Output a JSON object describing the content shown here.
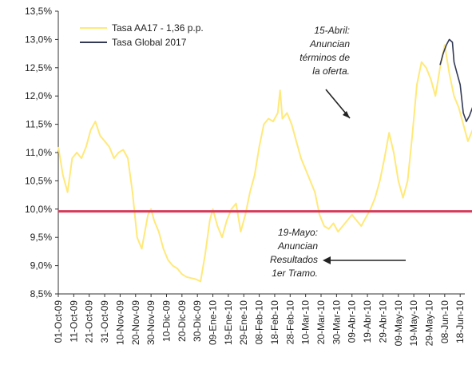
{
  "chart_data": {
    "type": "line",
    "title": "",
    "xlabel": "",
    "ylabel": "",
    "ylim": [
      8.5,
      13.5
    ],
    "y_ticks": [
      "13,5%",
      "13,0%",
      "12,5%",
      "12,0%",
      "11,5%",
      "11,0%",
      "10,5%",
      "10,0%",
      "9,5%",
      "9,0%",
      "8,5%"
    ],
    "y_tick_values": [
      13.5,
      13.0,
      12.5,
      12.0,
      11.5,
      11.0,
      10.5,
      10.0,
      9.5,
      9.0,
      8.5
    ],
    "x_ticks": [
      "01-Oct-09",
      "11-Oct-09",
      "21-Oct-09",
      "31-Oct-09",
      "10-Nov-09",
      "20-Nov-09",
      "30-Nov-09",
      "10-Dic-09",
      "20-Dic-09",
      "30-Dic-09",
      "09-Ene-10",
      "19-Ene-10",
      "29-Ene-10",
      "08-Feb-10",
      "18-Feb-10",
      "28-Feb-10",
      "10-Mar-10",
      "20-Mar-10",
      "30-Mar-10",
      "09-Abr-10",
      "19-Abr-10",
      "29-Abr-10",
      "09-May-10",
      "19-May-10",
      "29-May-10",
      "08-Jun-10",
      "18-Jun-10"
    ],
    "legend_placement": "top-left",
    "grid": false,
    "series": [
      {
        "name": "Tasa AA17 - 1,36 p.p.",
        "color": "#ffe97a",
        "points": [
          [
            0,
            11.1
          ],
          [
            0.3,
            10.6
          ],
          [
            0.6,
            10.3
          ],
          [
            0.9,
            10.9
          ],
          [
            1.2,
            11.0
          ],
          [
            1.5,
            10.9
          ],
          [
            1.8,
            11.1
          ],
          [
            2.1,
            11.4
          ],
          [
            2.4,
            11.55
          ],
          [
            2.7,
            11.3
          ],
          [
            3.0,
            11.2
          ],
          [
            3.3,
            11.1
          ],
          [
            3.6,
            10.9
          ],
          [
            3.9,
            11.0
          ],
          [
            4.2,
            11.05
          ],
          [
            4.5,
            10.9
          ],
          [
            4.8,
            10.3
          ],
          [
            5.1,
            9.5
          ],
          [
            5.4,
            9.3
          ],
          [
            5.6,
            9.6
          ],
          [
            5.8,
            9.9
          ],
          [
            6.0,
            10.0
          ],
          [
            6.2,
            9.8
          ],
          [
            6.5,
            9.6
          ],
          [
            6.8,
            9.3
          ],
          [
            7.1,
            9.1
          ],
          [
            7.4,
            9.0
          ],
          [
            7.7,
            8.95
          ],
          [
            8.0,
            8.85
          ],
          [
            8.3,
            8.8
          ],
          [
            8.6,
            8.78
          ],
          [
            8.9,
            8.76
          ],
          [
            9.2,
            8.72
          ],
          [
            9.5,
            9.2
          ],
          [
            9.8,
            9.8
          ],
          [
            10.0,
            10.0
          ],
          [
            10.3,
            9.7
          ],
          [
            10.6,
            9.5
          ],
          [
            10.9,
            9.8
          ],
          [
            11.2,
            10.0
          ],
          [
            11.5,
            10.1
          ],
          [
            11.8,
            9.6
          ],
          [
            12.1,
            9.9
          ],
          [
            12.4,
            10.3
          ],
          [
            12.7,
            10.6
          ],
          [
            13.0,
            11.1
          ],
          [
            13.3,
            11.5
          ],
          [
            13.6,
            11.6
          ],
          [
            13.9,
            11.55
          ],
          [
            14.2,
            11.7
          ],
          [
            14.35,
            12.1
          ],
          [
            14.5,
            11.6
          ],
          [
            14.8,
            11.7
          ],
          [
            15.1,
            11.5
          ],
          [
            15.4,
            11.2
          ],
          [
            15.7,
            10.9
          ],
          [
            16.0,
            10.7
          ],
          [
            16.3,
            10.5
          ],
          [
            16.6,
            10.3
          ],
          [
            16.9,
            9.9
          ],
          [
            17.2,
            9.7
          ],
          [
            17.5,
            9.65
          ],
          [
            17.8,
            9.75
          ],
          [
            18.1,
            9.6
          ],
          [
            18.4,
            9.7
          ],
          [
            18.7,
            9.8
          ],
          [
            19.0,
            9.9
          ],
          [
            19.3,
            9.8
          ],
          [
            19.6,
            9.7
          ],
          [
            19.9,
            9.85
          ],
          [
            20.2,
            10.0
          ],
          [
            20.5,
            10.2
          ],
          [
            20.8,
            10.5
          ],
          [
            21.1,
            10.9
          ],
          [
            21.4,
            11.35
          ],
          [
            21.7,
            11.0
          ],
          [
            22.0,
            10.5
          ],
          [
            22.3,
            10.2
          ],
          [
            22.6,
            10.5
          ],
          [
            22.9,
            11.3
          ],
          [
            23.2,
            12.2
          ],
          [
            23.5,
            12.6
          ],
          [
            23.8,
            12.5
          ],
          [
            24.1,
            12.3
          ],
          [
            24.4,
            12.0
          ],
          [
            24.7,
            12.5
          ],
          [
            25.0,
            12.9
          ],
          [
            25.3,
            12.4
          ],
          [
            25.6,
            12.0
          ],
          [
            25.9,
            11.8
          ],
          [
            26.2,
            11.5
          ],
          [
            26.5,
            11.2
          ],
          [
            26.8,
            11.4
          ]
        ]
      },
      {
        "name": "Tasa Global 2017",
        "color": "#333a55",
        "points": [
          [
            24.7,
            12.55
          ],
          [
            24.9,
            12.75
          ],
          [
            25.1,
            12.9
          ],
          [
            25.3,
            13.0
          ],
          [
            25.5,
            12.95
          ],
          [
            25.6,
            12.6
          ],
          [
            25.8,
            12.4
          ],
          [
            26.0,
            12.2
          ],
          [
            26.2,
            11.7
          ],
          [
            26.4,
            11.55
          ],
          [
            26.6,
            11.65
          ],
          [
            26.8,
            11.8
          ],
          [
            27.0,
            12.1
          ]
        ]
      },
      {
        "name": "",
        "color": "#d63a5a",
        "points": [
          [
            0,
            9.96
          ],
          [
            27.2,
            9.96
          ]
        ]
      }
    ],
    "annotations": [
      {
        "lines": [
          "15-Abril:",
          "Anuncian",
          "términos de",
          "la oferta."
        ],
        "arrow_to": [
          23.6,
          11.55
        ]
      },
      {
        "lines": [
          "19-Mayo:",
          "Anuncian",
          "Resultados",
          "1er Tramo."
        ],
        "arrow_to": [
          24.7,
          9.1
        ]
      }
    ]
  }
}
